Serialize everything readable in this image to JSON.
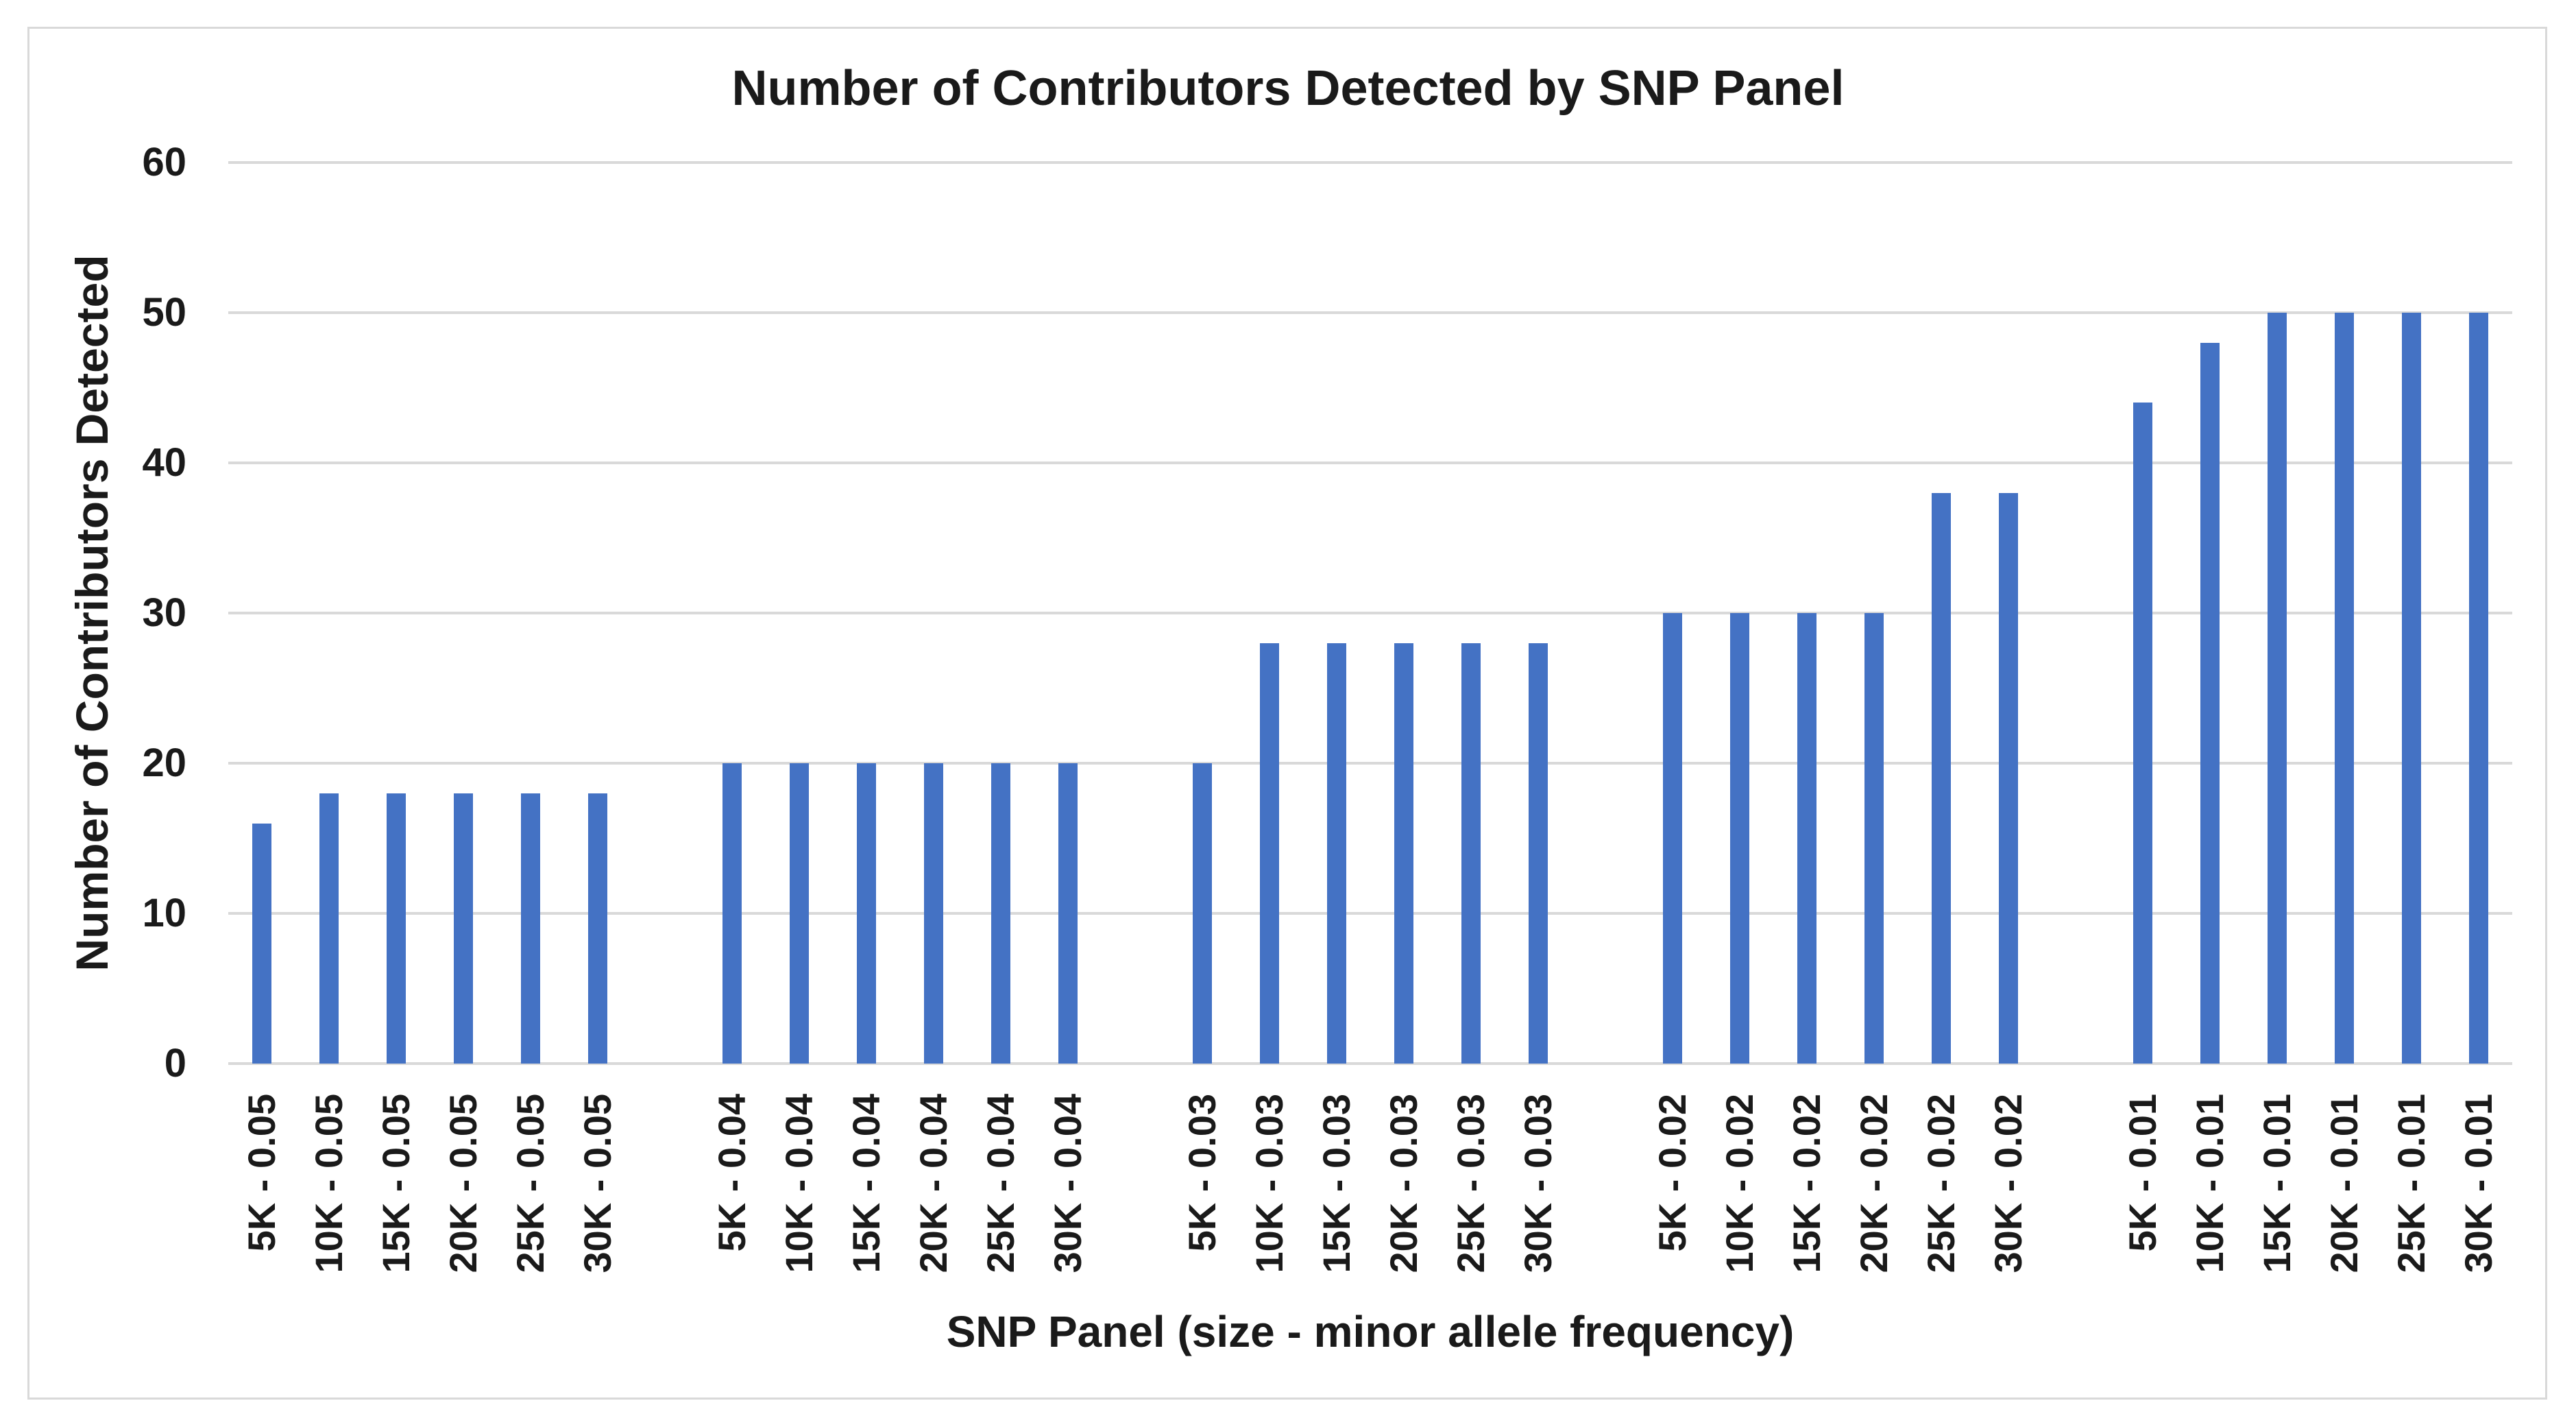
{
  "chart_data": {
    "type": "bar",
    "title": "Number of Contributors Detected by SNP Panel",
    "xlabel": "SNP Panel (size - minor allele frequency)",
    "ylabel": "Number of Contributors Detected",
    "categories": [
      "5K - 0.05",
      "10K - 0.05",
      "15K - 0.05",
      "20K - 0.05",
      "25K - 0.05",
      "30K - 0.05",
      "5K - 0.04",
      "10K - 0.04",
      "15K - 0.04",
      "20K - 0.04",
      "25K - 0.04",
      "30K - 0.04",
      "5K - 0.03",
      "10K - 0.03",
      "15K - 0.03",
      "20K - 0.03",
      "25K - 0.03",
      "30K - 0.03",
      "5K - 0.02",
      "10K - 0.02",
      "15K - 0.02",
      "20K - 0.02",
      "25K - 0.02",
      "30K - 0.02",
      "5K - 0.01",
      "10K - 0.01",
      "15K - 0.01",
      "20K - 0.01",
      "25K - 0.01",
      "30K - 0.01"
    ],
    "values": [
      16,
      18,
      18,
      18,
      18,
      18,
      20,
      20,
      20,
      20,
      20,
      20,
      20,
      28,
      28,
      28,
      28,
      28,
      30,
      30,
      30,
      30,
      38,
      38,
      44,
      48,
      50,
      50,
      50,
      50
    ],
    "group_size": 6,
    "blank_slots_between_groups": 1,
    "ylim": [
      0,
      60
    ],
    "yticks": [
      0,
      10,
      20,
      30,
      40,
      50,
      60
    ],
    "grid": true,
    "legend": false,
    "bar_color": "#4472C4",
    "gridline_color": "#D9D9D9",
    "text_color": "#1a1a1a",
    "border_color": "#D9D9D9"
  }
}
